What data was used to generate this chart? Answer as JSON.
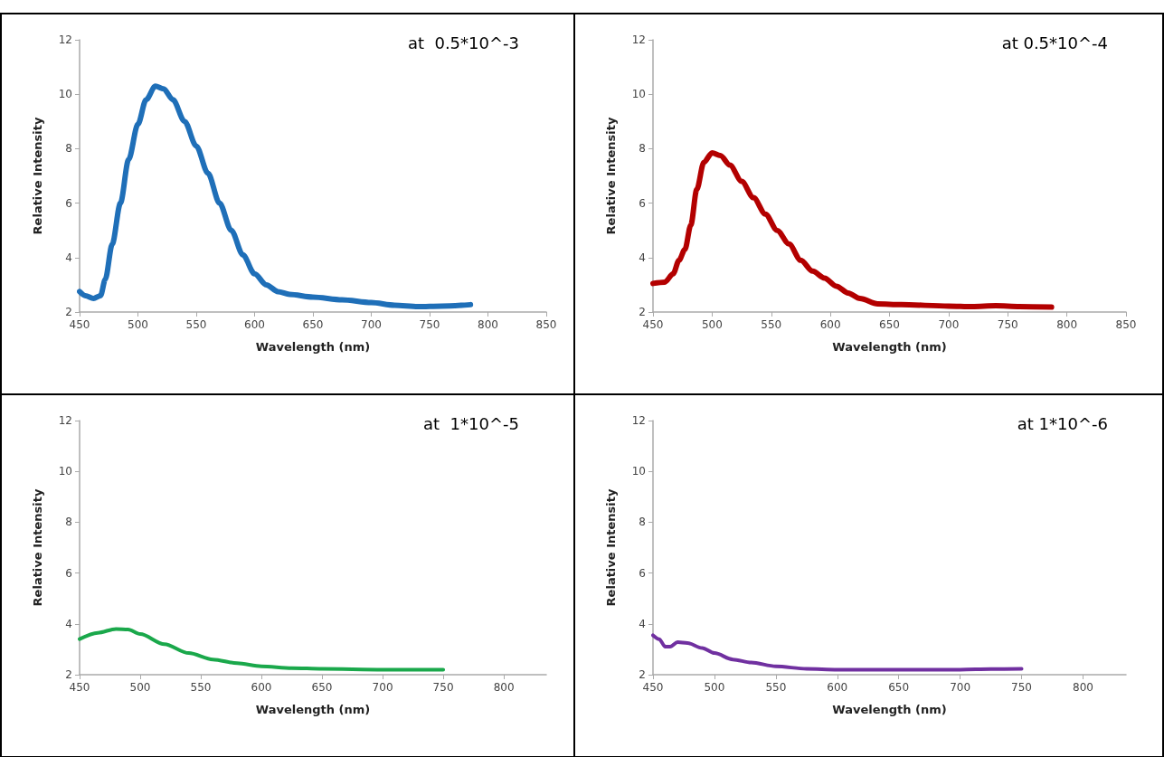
{
  "chart_data": [
    {
      "type": "line",
      "xlabel": "Wavelength (nm)",
      "ylabel": "Relative Intensity",
      "annotations": [
        "at  0.5*10^-3"
      ],
      "xlim": [
        450,
        850
      ],
      "xticks": [
        450,
        500,
        550,
        600,
        650,
        700,
        750,
        800,
        850
      ],
      "ylim": [
        2,
        12
      ],
      "yticks": [
        2,
        4,
        6,
        8,
        10,
        12
      ],
      "series": [
        {
          "color": "#1f6fb8",
          "x": [
            450,
            455,
            462,
            468,
            472,
            478,
            485,
            492,
            500,
            507,
            515,
            522,
            530,
            540,
            550,
            560,
            570,
            580,
            590,
            600,
            610,
            620,
            630,
            650,
            675,
            700,
            720,
            740,
            760,
            785
          ],
          "values": [
            2.75,
            2.6,
            2.5,
            2.6,
            3.2,
            4.5,
            6,
            7.6,
            8.9,
            9.8,
            10.3,
            10.2,
            9.8,
            9.0,
            8.1,
            7.1,
            6.0,
            5.0,
            4.1,
            3.4,
            3.0,
            2.75,
            2.65,
            2.55,
            2.45,
            2.35,
            2.25,
            2.2,
            2.22,
            2.27
          ]
        }
      ]
    },
    {
      "type": "line",
      "xlabel": "Wavelength (nm)",
      "ylabel": "Relative Intensity",
      "annotations": [
        "at 0.5*10^-4"
      ],
      "xlim": [
        450,
        850
      ],
      "xticks": [
        450,
        500,
        550,
        600,
        650,
        700,
        750,
        800,
        850
      ],
      "ylim": [
        2,
        12
      ],
      "yticks": [
        2,
        4,
        6,
        8,
        10,
        12
      ],
      "series": [
        {
          "color": "#b30000",
          "x": [
            450,
            460,
            467,
            472,
            477,
            482,
            487,
            493,
            500,
            507,
            515,
            525,
            535,
            545,
            555,
            565,
            575,
            585,
            595,
            605,
            615,
            625,
            640,
            660,
            700,
            720,
            740,
            760,
            787
          ],
          "values": [
            3.05,
            3.1,
            3.4,
            3.9,
            4.3,
            5.2,
            6.5,
            7.5,
            7.85,
            7.75,
            7.4,
            6.8,
            6.2,
            5.6,
            5.0,
            4.5,
            3.9,
            3.5,
            3.25,
            2.95,
            2.7,
            2.5,
            2.3,
            2.27,
            2.22,
            2.2,
            2.23,
            2.2,
            2.18
          ]
        }
      ]
    },
    {
      "type": "line",
      "xlabel": "Wavelength (nm)",
      "ylabel": "Relative Intensity",
      "annotations": [
        "at  1*10^-5"
      ],
      "xlim": [
        450,
        835
      ],
      "xticks": [
        450,
        500,
        550,
        600,
        650,
        700,
        750,
        800
      ],
      "ylim": [
        2,
        12
      ],
      "yticks": [
        2,
        4,
        6,
        8,
        10,
        12
      ],
      "series": [
        {
          "color": "#1aa84b",
          "x": [
            450,
            465,
            480,
            490,
            500,
            520,
            540,
            560,
            580,
            600,
            625,
            650,
            700,
            750
          ],
          "values": [
            3.4,
            3.65,
            3.8,
            3.78,
            3.6,
            3.2,
            2.85,
            2.6,
            2.45,
            2.33,
            2.26,
            2.23,
            2.2,
            2.2
          ]
        }
      ]
    },
    {
      "type": "line",
      "xlabel": "Wavelength (nm)",
      "ylabel": "Relative Intensity",
      "annotations": [
        "at 1*10^-6"
      ],
      "xlim": [
        450,
        835
      ],
      "xticks": [
        450,
        500,
        550,
        600,
        650,
        700,
        750,
        800
      ],
      "ylim": [
        2,
        12
      ],
      "yticks": [
        2,
        4,
        6,
        8,
        10,
        12
      ],
      "series": [
        {
          "color": "#7030a0",
          "x": [
            450,
            455,
            460,
            464,
            470,
            478,
            490,
            500,
            515,
            530,
            550,
            575,
            600,
            650,
            700,
            725,
            750
          ],
          "values": [
            3.55,
            3.4,
            3.1,
            3.1,
            3.28,
            3.25,
            3.05,
            2.85,
            2.6,
            2.48,
            2.33,
            2.23,
            2.2,
            2.2,
            2.2,
            2.22,
            2.23
          ]
        }
      ]
    }
  ]
}
